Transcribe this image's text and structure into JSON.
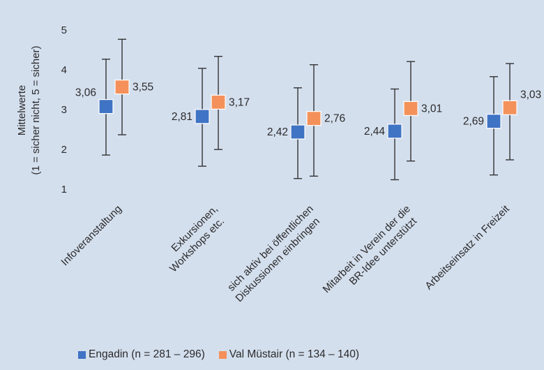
{
  "chart_data": {
    "type": "errorbar",
    "ylabel_line1": "Mittelwerte",
    "ylabel_line2": "(1 = sicher nicht, 5 = sicher)",
    "ylim": [
      1,
      5
    ],
    "yticks": [
      1,
      2,
      3,
      4,
      5
    ],
    "grid": false,
    "legend_position": "bottom",
    "categories": [
      [
        "Infoveranstaltung"
      ],
      [
        "Exkursionen,",
        "Workshops etc."
      ],
      [
        "sich aktiv bei öffentlichen",
        "Diskussionen einbringen"
      ],
      [
        "Mitarbeit in Verein der die",
        "BR-Idee unterstützt"
      ],
      [
        "Arbeitseinsatz in Freizeit"
      ]
    ],
    "series": [
      {
        "name": "Engadin (n = 281 – 296)",
        "color": "#3f73c4",
        "means": [
          3.06,
          2.81,
          2.42,
          2.44,
          2.69
        ],
        "labels": [
          "3,06",
          "2,81",
          "2,42",
          "2,44",
          "2,69"
        ],
        "lower": [
          1.84,
          1.56,
          1.25,
          1.22,
          1.34
        ],
        "upper": [
          4.25,
          4.02,
          3.53,
          3.5,
          3.81
        ]
      },
      {
        "name": "Val Müstair (n = 134 – 140)",
        "color": "#f4915a",
        "means": [
          3.55,
          3.17,
          2.76,
          3.01,
          3.03
        ],
        "labels": [
          "3,55",
          "3,17",
          "2,76",
          "3,01",
          "3,03"
        ],
        "lower": [
          2.35,
          1.98,
          1.31,
          1.69,
          1.72
        ],
        "upper": [
          4.75,
          4.32,
          4.11,
          4.19,
          4.14
        ]
      }
    ]
  }
}
